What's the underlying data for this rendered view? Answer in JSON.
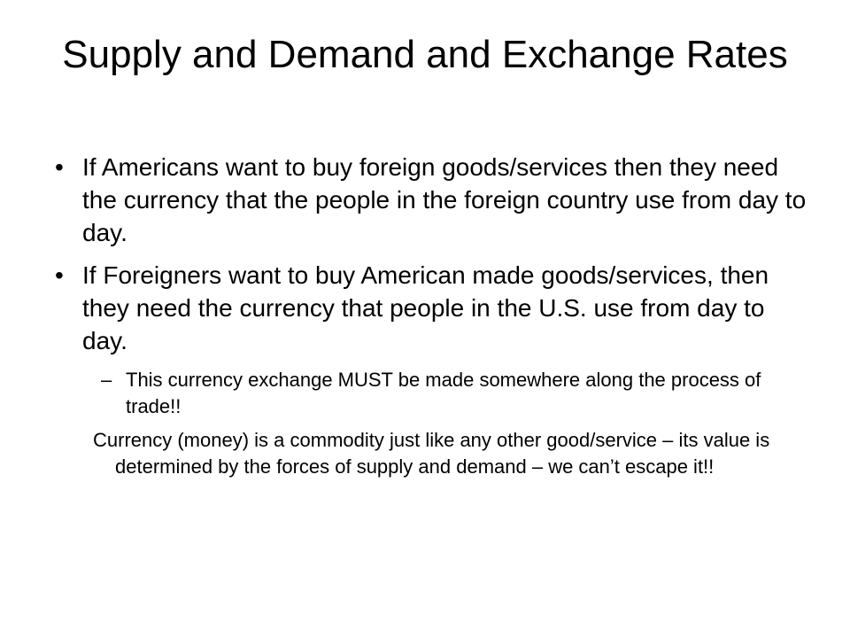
{
  "slide": {
    "title": "Supply and Demand and Exchange Rates",
    "bullets": [
      {
        "marker": "•",
        "text": "If Americans want to buy foreign goods/services then they need the currency that the people in the foreign country use from day to day."
      },
      {
        "marker": "•",
        "text": "If Foreigners want to buy American made goods/services, then they need the currency that people in the U.S. use from day to day."
      }
    ],
    "sub_bullet": {
      "marker": "–",
      "text": "This currency exchange MUST be made somewhere along the process of trade!!"
    },
    "note": "Currency (money) is a commodity just like any other good/service – its value is determined by the forces of supply and demand – we can’t escape it!!"
  }
}
